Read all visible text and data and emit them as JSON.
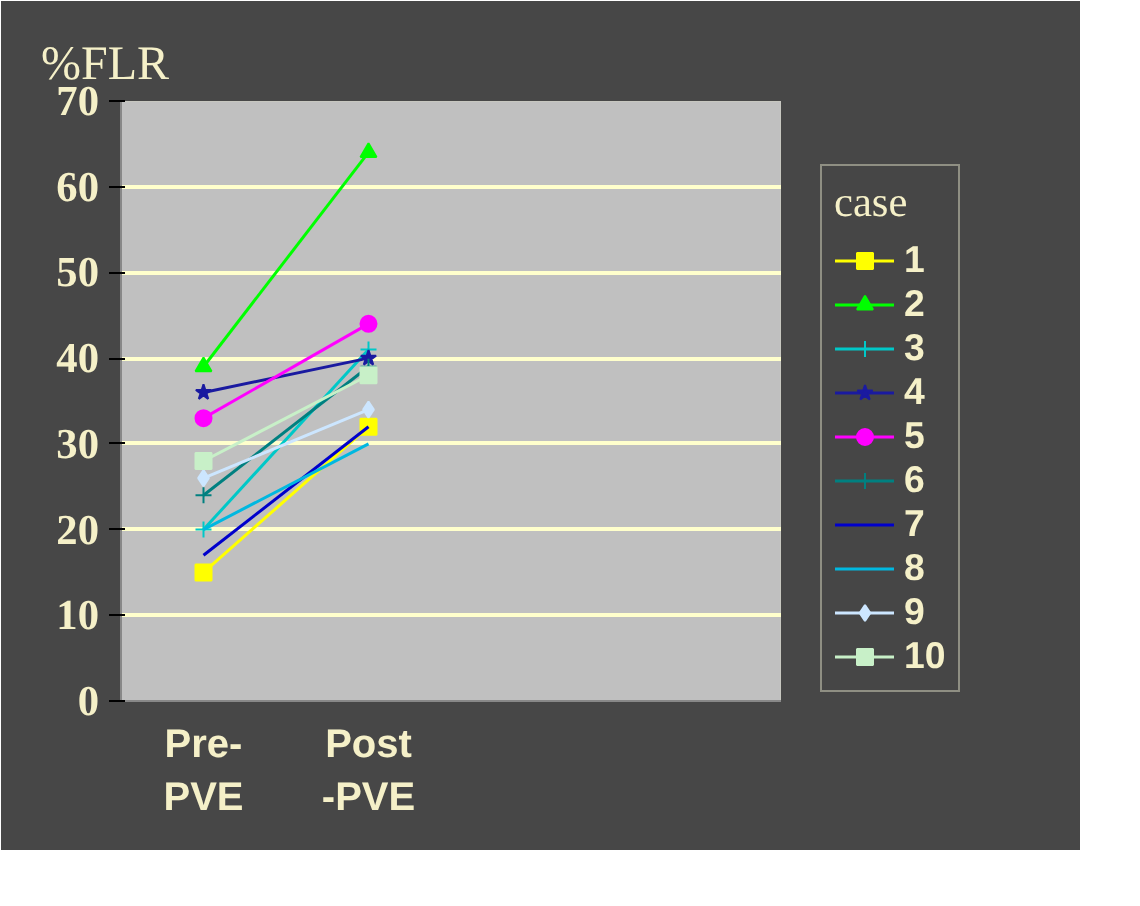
{
  "chart_data": {
    "type": "line",
    "ylabel": "%FLR",
    "legend_title": "case",
    "categories": [
      "Pre-\nPVE",
      "Post\n-PVE",
      null,
      null
    ],
    "ylim": [
      0,
      70
    ],
    "yticks": [
      0,
      10,
      20,
      30,
      40,
      50,
      60,
      70
    ],
    "grid": "y",
    "legend": "right",
    "series": [
      {
        "name": "1",
        "color": "#ffff00",
        "marker": "square",
        "values": [
          15,
          32,
          null,
          null
        ]
      },
      {
        "name": "2",
        "color": "#00ff00",
        "marker": "triangle",
        "values": [
          39,
          64,
          null,
          null
        ]
      },
      {
        "name": "3",
        "color": "#00c8c8",
        "marker": "cross",
        "values": [
          20,
          41,
          null,
          null
        ]
      },
      {
        "name": "4",
        "color": "#1a1aa0",
        "marker": "star",
        "values": [
          36,
          40,
          null,
          null
        ]
      },
      {
        "name": "5",
        "color": "#ff00ff",
        "marker": "circle",
        "values": [
          33,
          44,
          null,
          null
        ]
      },
      {
        "name": "6",
        "color": "#008080",
        "marker": "cross",
        "values": [
          24,
          39,
          null,
          null
        ]
      },
      {
        "name": "7",
        "color": "#0000cc",
        "marker": "none",
        "values": [
          17,
          32,
          null,
          null
        ]
      },
      {
        "name": "8",
        "color": "#00b8e0",
        "marker": "none",
        "values": [
          20,
          30,
          null,
          null
        ]
      },
      {
        "name": "9",
        "color": "#cce6ff",
        "marker": "diamond",
        "values": [
          26,
          34,
          null,
          null
        ]
      },
      {
        "name": "10",
        "color": "#c8f0c8",
        "marker": "square",
        "values": [
          28,
          38,
          null,
          null
        ]
      }
    ]
  }
}
